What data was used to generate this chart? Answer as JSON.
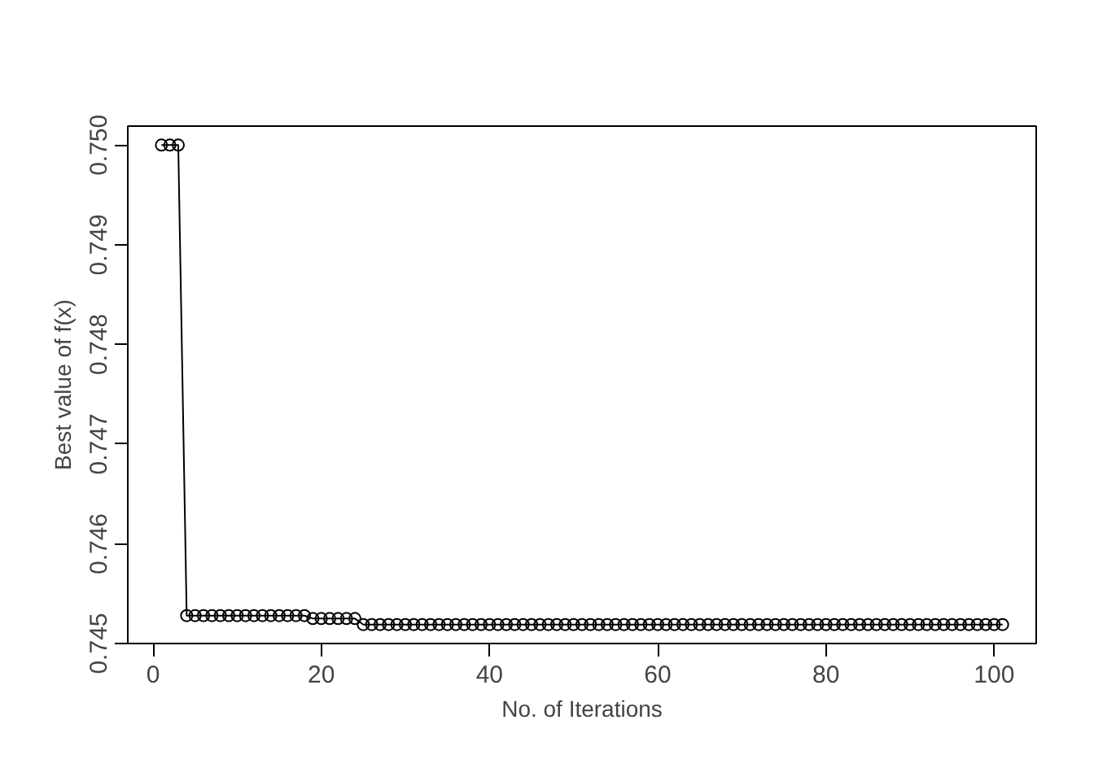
{
  "chart_data": {
    "type": "line",
    "xlabel": "No. of Iterations",
    "ylabel": "Best value of f(x)",
    "x": [
      1,
      2,
      3,
      4,
      5,
      6,
      7,
      8,
      9,
      10,
      11,
      12,
      13,
      14,
      15,
      16,
      17,
      18,
      19,
      20,
      21,
      22,
      23,
      24,
      25,
      26,
      27,
      28,
      29,
      30,
      31,
      32,
      33,
      34,
      35,
      36,
      37,
      38,
      39,
      40,
      41,
      42,
      43,
      44,
      45,
      46,
      47,
      48,
      49,
      50,
      51,
      52,
      53,
      54,
      55,
      56,
      57,
      58,
      59,
      60,
      61,
      62,
      63,
      64,
      65,
      66,
      67,
      68,
      69,
      70,
      71,
      72,
      73,
      74,
      75,
      76,
      77,
      78,
      79,
      80,
      81,
      82,
      83,
      84,
      85,
      86,
      87,
      88,
      89,
      90,
      91,
      92,
      93,
      94,
      95,
      96,
      97,
      98,
      99,
      100,
      101
    ],
    "values": [
      0.75,
      0.75,
      0.75,
      0.74528,
      0.74528,
      0.74528,
      0.74528,
      0.74528,
      0.74528,
      0.74528,
      0.74528,
      0.74528,
      0.74528,
      0.74528,
      0.74528,
      0.74528,
      0.74528,
      0.74528,
      0.74525,
      0.74525,
      0.74525,
      0.74525,
      0.74525,
      0.74525,
      0.74519,
      0.74519,
      0.74519,
      0.74519,
      0.74519,
      0.74519,
      0.74519,
      0.74519,
      0.74519,
      0.74519,
      0.74519,
      0.74519,
      0.74519,
      0.74519,
      0.74519,
      0.74519,
      0.74519,
      0.74519,
      0.74519,
      0.74519,
      0.74519,
      0.74519,
      0.74519,
      0.74519,
      0.74519,
      0.74519,
      0.74519,
      0.74519,
      0.74519,
      0.74519,
      0.74519,
      0.74519,
      0.74519,
      0.74519,
      0.74519,
      0.74519,
      0.74519,
      0.74519,
      0.74519,
      0.74519,
      0.74519,
      0.74519,
      0.74519,
      0.74519,
      0.74519,
      0.74519,
      0.74519,
      0.74519,
      0.74519,
      0.74519,
      0.74519,
      0.74519,
      0.74519,
      0.74519,
      0.74519,
      0.74519,
      0.74519,
      0.74519,
      0.74519,
      0.74519,
      0.74519,
      0.74519,
      0.74519,
      0.74519,
      0.74519,
      0.74519,
      0.74519,
      0.74519,
      0.74519,
      0.74519,
      0.74519,
      0.74519,
      0.74519,
      0.74519,
      0.74519,
      0.74519,
      0.74519
    ],
    "color": "#000000",
    "marker": "circle",
    "line_style": "solid",
    "grid": false,
    "xlim": [
      -3,
      105
    ],
    "ylim": [
      0.745,
      0.75019
    ],
    "xticks": [
      0,
      20,
      40,
      60,
      80,
      100
    ],
    "yticks": [
      {
        "value": 0.745,
        "label": "0.745"
      },
      {
        "value": 0.746,
        "label": "0.746"
      },
      {
        "value": 0.747,
        "label": "0.747"
      },
      {
        "value": 0.748,
        "label": "0.748"
      },
      {
        "value": 0.749,
        "label": "0.749"
      },
      {
        "value": 0.75,
        "label": "0.750"
      }
    ]
  }
}
